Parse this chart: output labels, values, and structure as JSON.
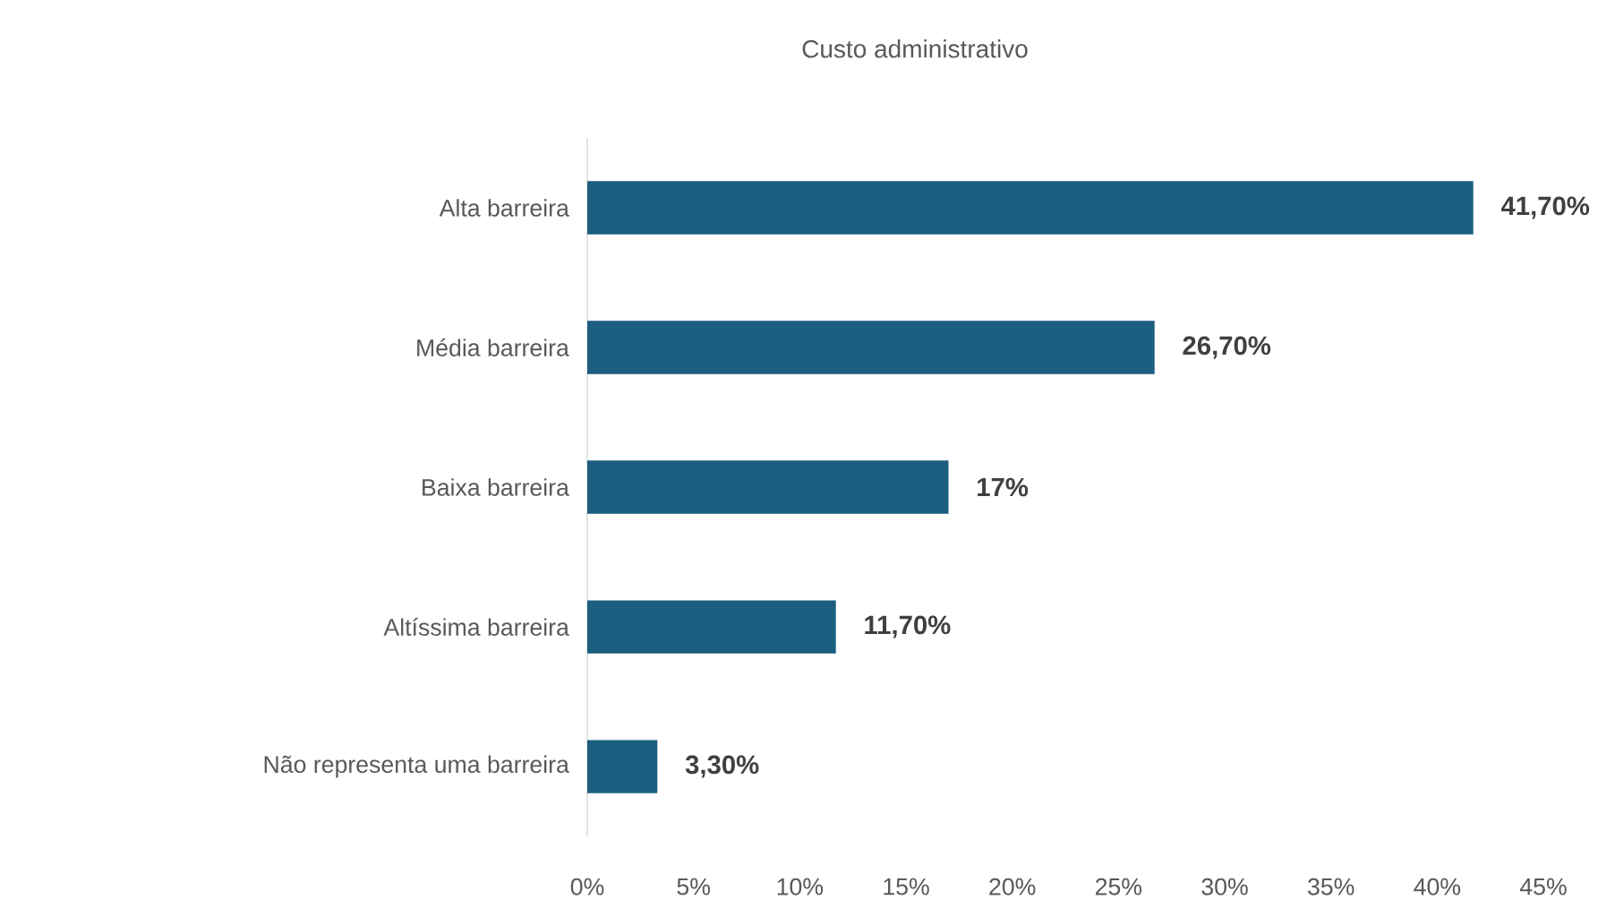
{
  "chart_data": {
    "type": "bar",
    "orientation": "horizontal",
    "title": "Custo administrativo",
    "categories": [
      "Alta barreira",
      "Média barreira",
      "Baixa barreira",
      "Altíssima barreira",
      "Não representa uma barreira"
    ],
    "values": [
      41.7,
      26.7,
      17,
      11.7,
      3.3
    ],
    "value_labels": [
      "41,70%",
      "26,70%",
      "17%",
      "11,70%",
      "3,30%"
    ],
    "color": "#1b5e80",
    "xlim": [
      0,
      45
    ],
    "xticks": [
      {
        "value": 0,
        "label": "0%"
      },
      {
        "value": 5,
        "label": "5%"
      },
      {
        "value": 10,
        "label": "10%"
      },
      {
        "value": 15,
        "label": "15%"
      },
      {
        "value": 20,
        "label": "20%"
      },
      {
        "value": 25,
        "label": "25%"
      },
      {
        "value": 30,
        "label": "30%"
      },
      {
        "value": 35,
        "label": "35%"
      },
      {
        "value": 40,
        "label": "40%"
      },
      {
        "value": 45,
        "label": "45%"
      }
    ]
  }
}
